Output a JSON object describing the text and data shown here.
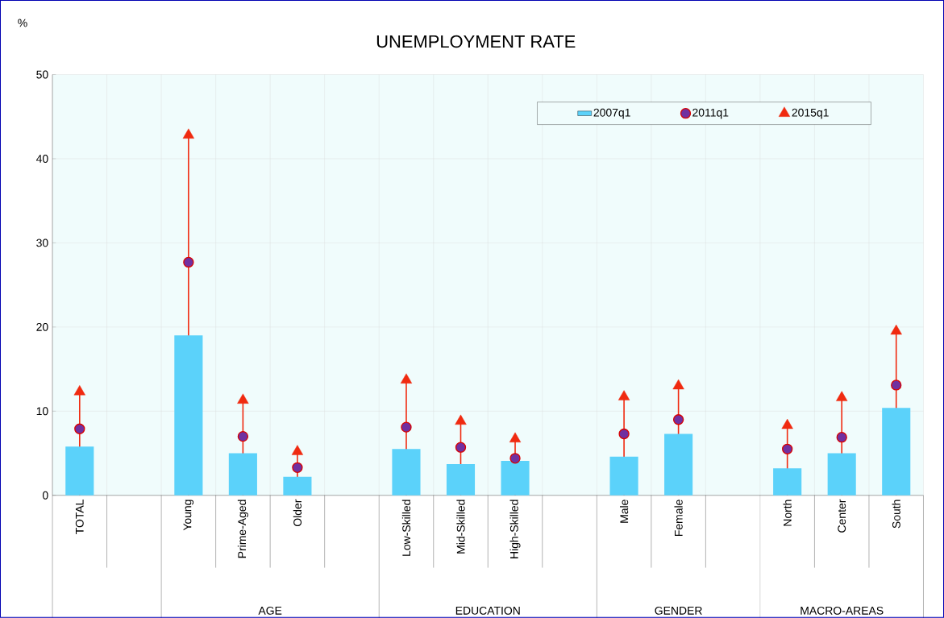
{
  "chart_data": {
    "type": "bar",
    "title": "UNEMPLOYMENT RATE",
    "ylabel": "%",
    "categories": [
      "TOTAL",
      null,
      "Young",
      "Prime-Aged",
      "Older",
      null,
      "Low-Skilled",
      "Mid-Skilled",
      "High-Skilled",
      null,
      "Male",
      "Female",
      null,
      "North",
      "Center",
      "South"
    ],
    "series": [
      {
        "name": "2007q1",
        "color": "#5bd2fa",
        "values": [
          5.8,
          null,
          19.0,
          5.0,
          2.2,
          null,
          5.5,
          3.7,
          4.1,
          null,
          4.6,
          7.3,
          null,
          3.2,
          5.0,
          10.4
        ]
      },
      {
        "name": "2011q1",
        "type": "scatter",
        "marker": "circle",
        "color": "#7030a0",
        "values": [
          7.9,
          null,
          27.7,
          7.0,
          3.3,
          null,
          8.1,
          5.7,
          4.4,
          null,
          7.3,
          9.0,
          null,
          5.5,
          6.9,
          13.1
        ]
      },
      {
        "name": "2015q1",
        "type": "lollipop",
        "marker": "triangle",
        "color": "#f02a10",
        "values": [
          12.3,
          null,
          42.8,
          11.3,
          5.2,
          null,
          13.7,
          8.8,
          6.7,
          null,
          11.7,
          13.0,
          null,
          8.3,
          11.6,
          19.5
        ]
      }
    ],
    "annotations": [
      "AGE",
      "EDUCATION",
      "GENDER",
      "MACRO-AREAS"
    ],
    "ylim": [
      0,
      50
    ],
    "yticks": [
      0,
      10,
      20,
      30,
      40,
      50
    ],
    "grid": true,
    "legend": "top right"
  }
}
